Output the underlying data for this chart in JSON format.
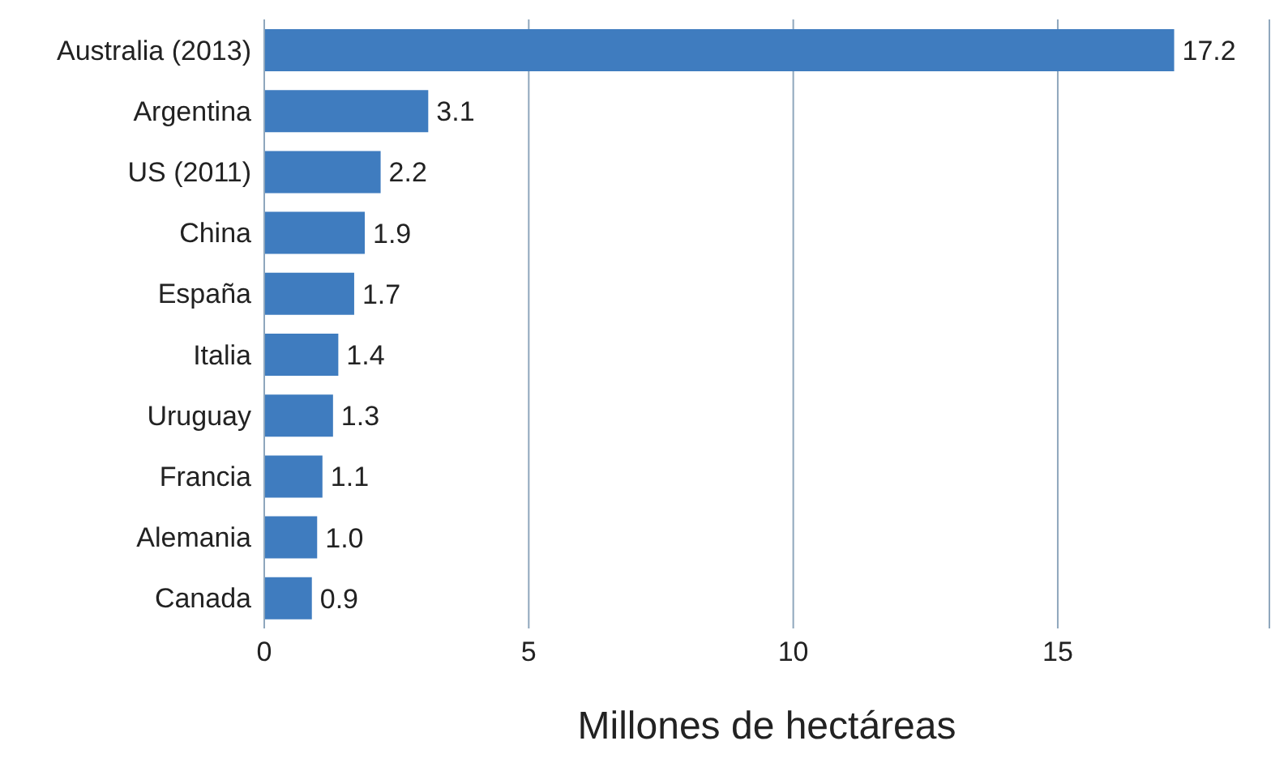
{
  "chart_data": {
    "type": "bar",
    "orientation": "horizontal",
    "xlabel": "Millones de hectáreas",
    "categories": [
      "Australia (2013)",
      "Argentina",
      "US (2011)",
      "China",
      "España",
      "Italia",
      "Uruguay",
      "Francia",
      "Alemania",
      "Canada"
    ],
    "values": [
      17.2,
      3.1,
      2.2,
      1.9,
      1.7,
      1.4,
      1.3,
      1.1,
      1.0,
      0.9
    ],
    "value_labels": [
      "17.2",
      "3.1",
      "2.2",
      "1.9",
      "1.7",
      "1.4",
      "1.3",
      "1.1",
      "1.0",
      "0.9"
    ],
    "color": "#3f7cbf",
    "xlim": [
      0,
      19
    ],
    "xticks": [
      0,
      5,
      10,
      15
    ],
    "grid": "x"
  }
}
